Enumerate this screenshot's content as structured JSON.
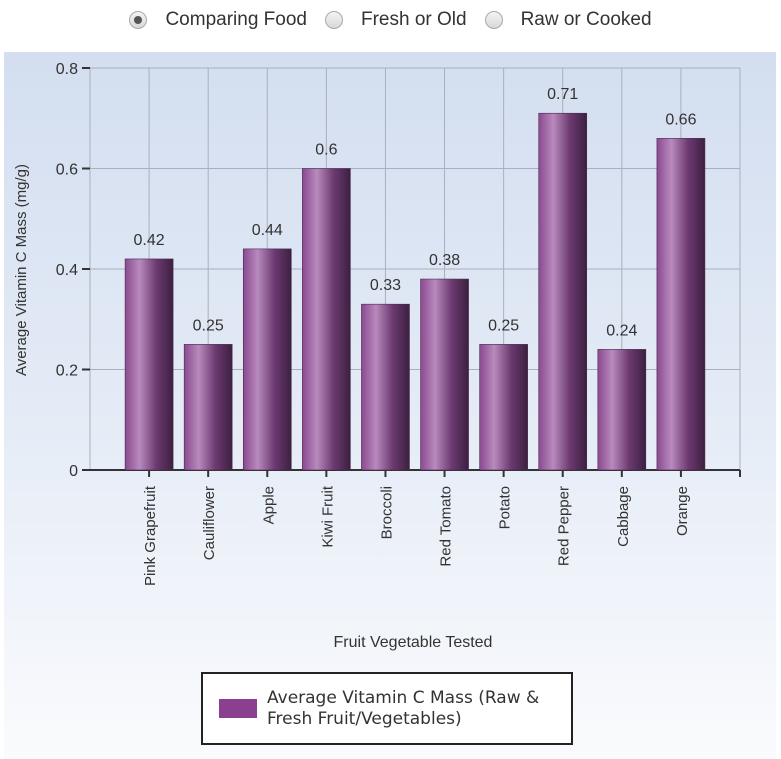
{
  "radio_options": [
    {
      "label": "Comparing Food",
      "selected": true
    },
    {
      "label": "Fresh or Old",
      "selected": false
    },
    {
      "label": "Raw or Cooked",
      "selected": false
    }
  ],
  "chart_data": {
    "type": "bar",
    "categories": [
      "Pink Grapefruit",
      "Cauliflower",
      "Apple",
      "Kiwi Fruit",
      "Broccoli",
      "Red Tomato",
      "Potato",
      "Red Pepper",
      "Cabbage",
      "Orange"
    ],
    "series": [
      {
        "name": "Average Vitamin C Mass (Raw & Fresh Fruit/Vegetables)",
        "values": [
          0.42,
          0.25,
          0.44,
          0.6,
          0.33,
          0.38,
          0.25,
          0.71,
          0.24,
          0.66
        ],
        "color": "#8a3f8f"
      }
    ],
    "data_labels": [
      "0.42",
      "0.25",
      "0.44",
      "0.6",
      "0.33",
      "0.38",
      "0.25",
      "0.71",
      "0.24",
      "0.66"
    ],
    "xlabel": "Fruit Vegetable Tested",
    "ylabel": "Average Vitamin C Mass (mg/g)",
    "ylim": [
      0,
      0.8
    ],
    "yticks": [
      "0",
      "0.2",
      "0.4",
      "0.6",
      "0.8"
    ],
    "grid": true,
    "legend": "bottom"
  }
}
